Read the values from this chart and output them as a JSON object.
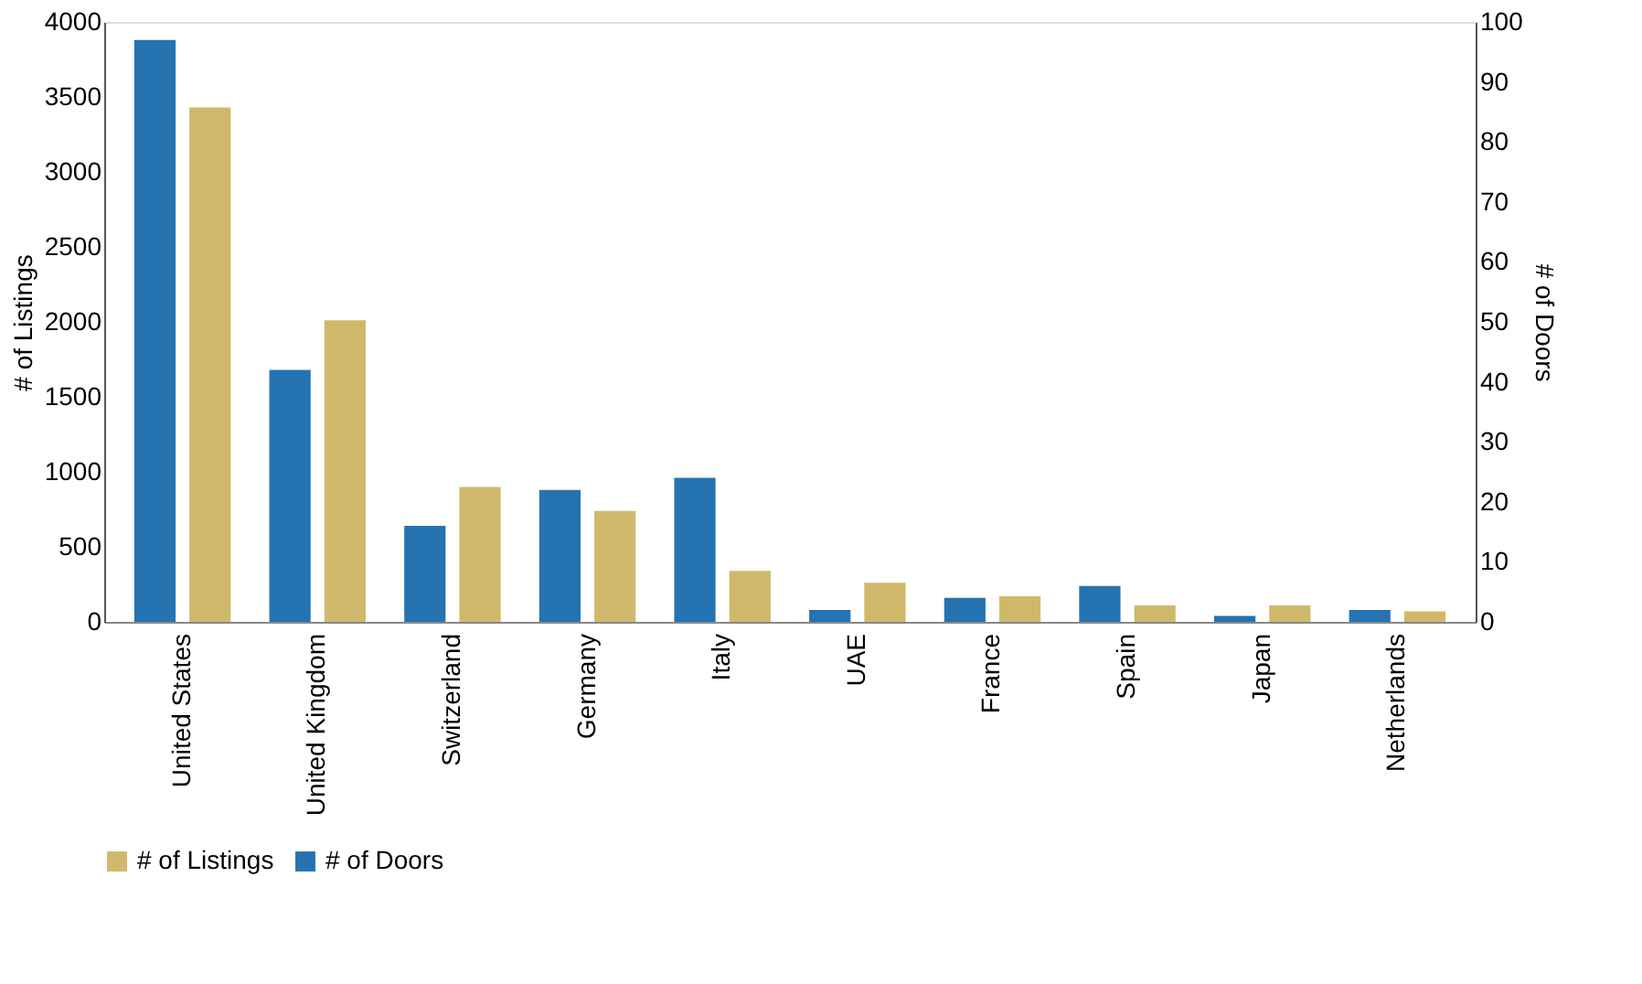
{
  "chart_data": {
    "type": "bar",
    "categories": [
      "United States",
      "United Kingdom",
      "Switzerland",
      "Germany",
      "Italy",
      "UAE",
      "France",
      "Spain",
      "Japan",
      "Netherlands"
    ],
    "series": [
      {
        "name": "# of Listings",
        "color": "#d0b86b",
        "values": [
          3430,
          2010,
          900,
          740,
          340,
          260,
          170,
          110,
          110,
          70
        ]
      },
      {
        "name": "# of Doors",
        "color": "#2573b1",
        "axis": "y2",
        "values": [
          97,
          42,
          16,
          22,
          24,
          2,
          4,
          6,
          1,
          2
        ]
      }
    ],
    "ylabel": "# of Listings",
    "y2label": "# of Doors",
    "ylim": [
      0,
      4000
    ],
    "yticks": [
      0,
      500,
      1000,
      1500,
      2000,
      2500,
      3000,
      3500,
      4000
    ],
    "y2lim": [
      0,
      100
    ],
    "y2ticks": [
      0,
      10,
      20,
      30,
      40,
      50,
      60,
      70,
      80,
      90,
      100
    ],
    "grid": false,
    "legend": "bottom"
  }
}
